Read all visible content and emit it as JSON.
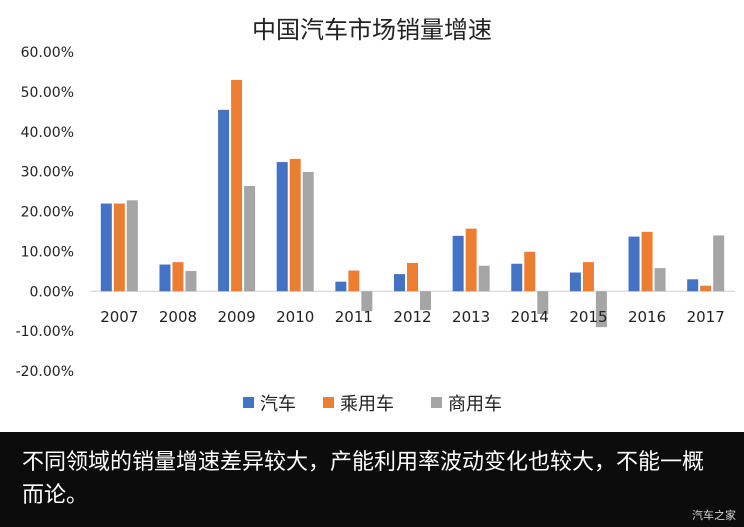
{
  "chart_data": {
    "type": "bar",
    "title": "中国汽车市场销量增速",
    "categories": [
      "2007",
      "2008",
      "2009",
      "2010",
      "2011",
      "2012",
      "2013",
      "2014",
      "2015",
      "2016",
      "2017"
    ],
    "series": [
      {
        "name": "汽车",
        "color": "#4472C4",
        "values": [
          22.0,
          6.7,
          45.5,
          32.4,
          2.4,
          4.3,
          13.9,
          6.9,
          4.7,
          13.7,
          3.0
        ]
      },
      {
        "name": "乘用车",
        "color": "#ED7D31",
        "values": [
          22.0,
          7.3,
          53.0,
          33.2,
          5.2,
          7.1,
          15.7,
          9.9,
          7.3,
          14.9,
          1.4
        ]
      },
      {
        "name": "商用车",
        "color": "#A5A5A5",
        "values": [
          22.8,
          5.1,
          26.4,
          29.9,
          -5.0,
          -4.7,
          6.4,
          -5.7,
          -9.0,
          5.8,
          14.0
        ]
      }
    ],
    "yticks": [
      "60.00%",
      "50.00%",
      "40.00%",
      "30.00%",
      "20.00%",
      "10.00%",
      "0.00%",
      "-10.00%",
      "-20.00%"
    ],
    "ylim": [
      -20,
      60
    ],
    "legend_position": "bottom",
    "grid": false
  },
  "caption": {
    "text": "不同领域的销量增速差异较大，产能利用率波动变化也较大，不能一概而论。"
  },
  "watermark": {
    "text": "汽车之家"
  }
}
